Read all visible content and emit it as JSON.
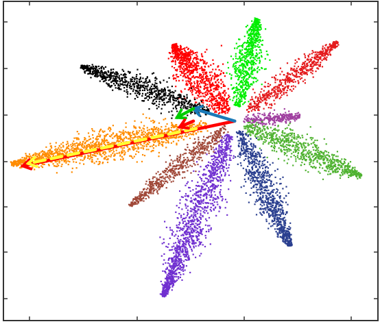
{
  "chart_data": {
    "type": "scatter",
    "title": "",
    "xlabel": "",
    "ylabel": "",
    "xlim": [
      -4.2,
      2.6
    ],
    "ylim": [
      -4.0,
      2.4
    ],
    "grid": false,
    "legend": "none",
    "center": [
      0,
      0
    ],
    "series": [
      {
        "color": "#00ee00",
        "direction": [
          0.4,
          2.0
        ],
        "length_range": [
          0.3,
          2.1
        ],
        "spread": 0.12,
        "point_count": 700
      },
      {
        "color": "#ff0000",
        "direction": [
          -1.1,
          1.5
        ],
        "length_range": [
          0.2,
          1.9
        ],
        "spread": 0.17,
        "point_count": 900
      },
      {
        "color": "#000000",
        "direction": [
          -2.8,
          1.1
        ],
        "length_range": [
          0.5,
          3.0
        ],
        "spread": 0.11,
        "point_count": 800
      },
      {
        "color": "#e41a1c",
        "direction": [
          1.9,
          1.6
        ],
        "length_range": [
          0.3,
          2.45
        ],
        "spread": 0.09,
        "point_count": 600
      },
      {
        "color": "#a040a0",
        "direction": [
          1.2,
          0.1
        ],
        "length_range": [
          0.15,
          1.2
        ],
        "spread": 0.05,
        "point_count": 300
      },
      {
        "color": "#4fb230",
        "direction": [
          2.3,
          -1.1
        ],
        "length_range": [
          0.2,
          2.55
        ],
        "spread": 0.13,
        "point_count": 800
      },
      {
        "color": "#2a3f8f",
        "direction": [
          1.0,
          -2.5
        ],
        "length_range": [
          0.2,
          2.7
        ],
        "spread": 0.12,
        "point_count": 900
      },
      {
        "color": "#7030d0",
        "direction": [
          -1.3,
          -3.5
        ],
        "length_range": [
          0.3,
          3.75
        ],
        "spread": 0.15,
        "point_count": 1300
      },
      {
        "color": "#a04838",
        "direction": [
          -1.9,
          -1.7
        ],
        "length_range": [
          0.2,
          2.55
        ],
        "spread": 0.08,
        "point_count": 600
      },
      {
        "color": "#ff8c00",
        "direction": [
          -4.0,
          -0.85
        ],
        "length_range": [
          0.5,
          4.15
        ],
        "spread": 0.14,
        "point_count": 1400
      }
    ],
    "arrows": [
      {
        "color": "#ff0000",
        "from": [
          0,
          0
        ],
        "to": [
          -3.85,
          -0.9
        ],
        "style": "solid"
      },
      {
        "color": "#ffff33",
        "from": [
          -0.7,
          -0.15
        ],
        "to": [
          -3.75,
          -0.85
        ],
        "style": "dashed"
      },
      {
        "color": "#1a7ab8",
        "from": [
          0,
          0
        ],
        "to": [
          -0.75,
          0.25
        ],
        "style": "solid"
      },
      {
        "color": "#00cc00",
        "from": [
          -0.75,
          0.25
        ],
        "to": [
          -1.05,
          0.07
        ],
        "style": "solid"
      },
      {
        "color": "#ff0000",
        "from": [
          -0.75,
          0.0
        ],
        "to": [
          -1.0,
          -0.12
        ],
        "style": "solid"
      }
    ]
  }
}
